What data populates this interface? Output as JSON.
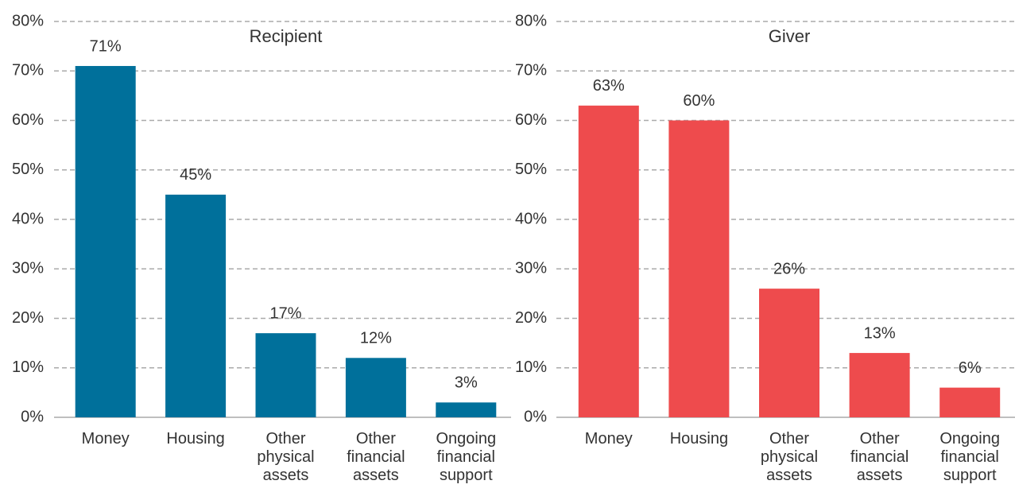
{
  "chart_data": [
    {
      "type": "bar",
      "title": "Recipient",
      "color": "#00709b",
      "categories": [
        "Money",
        "Housing",
        "Other physical assets",
        "Other financial assets",
        "Ongoing financial support"
      ],
      "values": [
        71,
        45,
        17,
        12,
        3
      ],
      "value_labels": [
        "71%",
        "45%",
        "17%",
        "12%",
        "3%"
      ],
      "ylim": [
        0,
        80
      ],
      "yticks": [
        {
          "value": 0,
          "label": "0%"
        },
        {
          "value": 10,
          "label": "10%"
        },
        {
          "value": 20,
          "label": "20%"
        },
        {
          "value": 30,
          "label": "30%"
        },
        {
          "value": 40,
          "label": "40%"
        },
        {
          "value": 50,
          "label": "50%"
        },
        {
          "value": 60,
          "label": "60%"
        },
        {
          "value": 70,
          "label": "70%"
        },
        {
          "value": 80,
          "label": "80%"
        }
      ],
      "grid": true
    },
    {
      "type": "bar",
      "title": "Giver",
      "color": "#ee4b4d",
      "categories": [
        "Money",
        "Housing",
        "Other physical assets",
        "Other financial assets",
        "Ongoing financial support"
      ],
      "values": [
        63,
        60,
        26,
        13,
        6
      ],
      "value_labels": [
        "63%",
        "60%",
        "26%",
        "13%",
        "6%"
      ],
      "ylim": [
        0,
        80
      ],
      "yticks": [
        {
          "value": 0,
          "label": "0%"
        },
        {
          "value": 10,
          "label": "10%"
        },
        {
          "value": 20,
          "label": "20%"
        },
        {
          "value": 30,
          "label": "30%"
        },
        {
          "value": 40,
          "label": "40%"
        },
        {
          "value": 50,
          "label": "50%"
        },
        {
          "value": 60,
          "label": "60%"
        },
        {
          "value": 70,
          "label": "70%"
        },
        {
          "value": 80,
          "label": "80%"
        }
      ],
      "grid": true
    }
  ]
}
